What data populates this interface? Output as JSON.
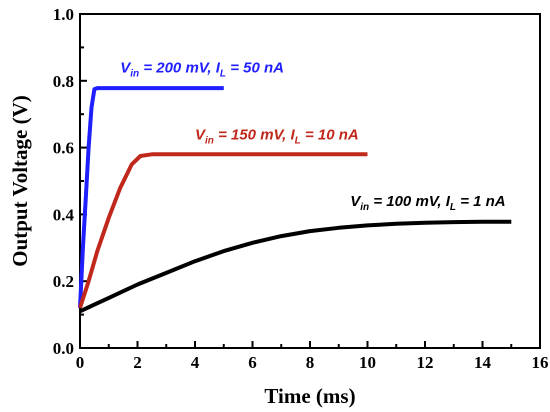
{
  "chart_data": {
    "type": "line",
    "title": "",
    "xlabel": "Time (ms)",
    "ylabel": "Output Voltage (V)",
    "xlim": [
      0,
      16
    ],
    "ylim": [
      0.0,
      1.0
    ],
    "xticks": [
      "0",
      "2",
      "4",
      "6",
      "8",
      "10",
      "12",
      "14",
      "16"
    ],
    "yticks": [
      "0.0",
      "0.2",
      "0.4",
      "0.6",
      "0.8",
      "1.0"
    ],
    "grid": false,
    "series": [
      {
        "name": "V_in = 200 mV, I_L = 50 nA",
        "color": "#1f1fff",
        "x": [
          0.0,
          0.1,
          0.2,
          0.3,
          0.4,
          0.5,
          0.6,
          1.0,
          2.0,
          3.0,
          4.0,
          5.0
        ],
        "y": [
          0.12,
          0.3,
          0.45,
          0.6,
          0.72,
          0.775,
          0.778,
          0.778,
          0.778,
          0.778,
          0.778,
          0.778
        ]
      },
      {
        "name": "V_in = 150 mV, I_L = 10 nA",
        "color": "#c0281c",
        "x": [
          0.0,
          0.3,
          0.6,
          1.0,
          1.4,
          1.8,
          2.1,
          2.5,
          3.0,
          4.0,
          6.0,
          8.0,
          10.0
        ],
        "y": [
          0.12,
          0.2,
          0.29,
          0.39,
          0.48,
          0.55,
          0.575,
          0.58,
          0.58,
          0.58,
          0.58,
          0.58,
          0.58
        ]
      },
      {
        "name": "V_in = 100 mV, I_L = 1 nA",
        "color": "#000000",
        "x": [
          0.0,
          0.5,
          1,
          2,
          3,
          4,
          5,
          6,
          7,
          8,
          9,
          10,
          11,
          12,
          13,
          14,
          15
        ],
        "y": [
          0.11,
          0.13,
          0.15,
          0.19,
          0.225,
          0.26,
          0.29,
          0.315,
          0.335,
          0.35,
          0.36,
          0.367,
          0.372,
          0.375,
          0.377,
          0.378,
          0.378
        ]
      }
    ],
    "annotations": [
      {
        "vpre": "V",
        "vsub": "in",
        "mid": " = 200 mV, ",
        "ipre": "I",
        "isub": "L",
        "post": " = 50 nA",
        "color": "#1f1fff",
        "x": 1.4,
        "y": 0.825
      },
      {
        "vpre": "V",
        "vsub": "in",
        "mid": " = 150 mV, ",
        "ipre": "I",
        "isub": "L",
        "post": " = 10 nA",
        "color": "#c0281c",
        "x": 4.0,
        "y": 0.625
      },
      {
        "vpre": "V",
        "vsub": "in",
        "mid": " = 100 mV, ",
        "ipre": "I",
        "isub": "L",
        "post": " = 1 nA",
        "color": "#000000",
        "x": 9.4,
        "y": 0.425
      }
    ]
  }
}
